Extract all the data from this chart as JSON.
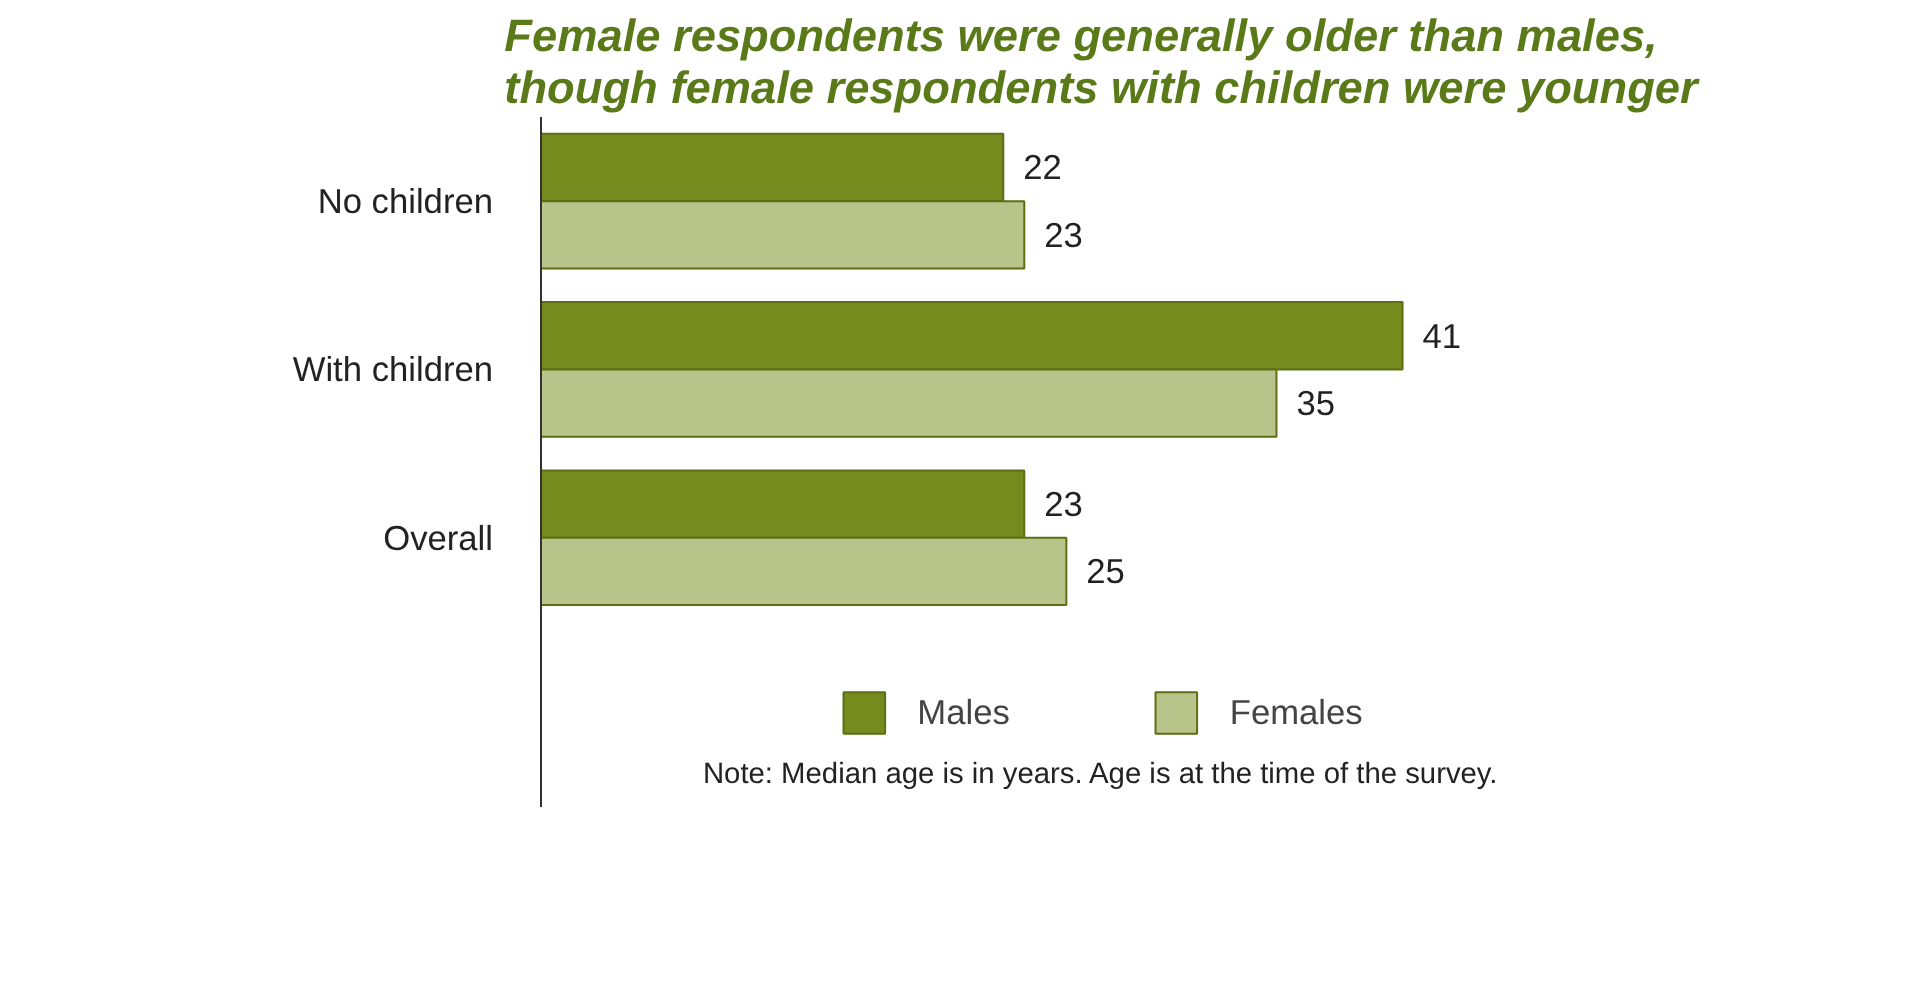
{
  "chart_data": {
    "type": "bar",
    "orientation": "horizontal",
    "title": "Female respondents were generally older than males, though female respondents with children were younger",
    "categories": [
      "No children",
      "With children",
      "Overall"
    ],
    "series": [
      {
        "name": "Males",
        "color": "#758b1e",
        "values": [
          22,
          41,
          23
        ]
      },
      {
        "name": "Females",
        "color": "#b8c48a",
        "values": [
          23,
          35,
          25
        ]
      }
    ],
    "data_labels": true,
    "grid": false,
    "legend": "bottom",
    "annotations": [
      "Note: Median age is in years. Age is at the time of the survey."
    ]
  }
}
